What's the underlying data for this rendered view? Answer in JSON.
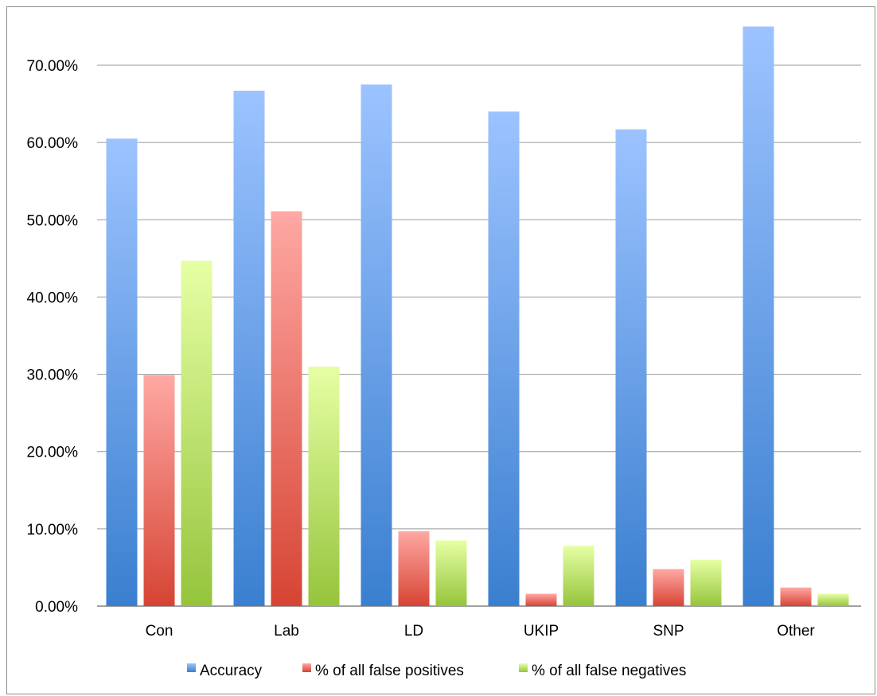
{
  "chart_data": {
    "type": "bar",
    "categories": [
      "Con",
      "Lab",
      "LD",
      "UKIP",
      "SNP",
      "Other"
    ],
    "series": [
      {
        "name": "Accuracy",
        "values": [
          0.605,
          0.667,
          0.675,
          0.64,
          0.617,
          0.75
        ]
      },
      {
        "name": "% of all false positives",
        "values": [
          0.299,
          0.511,
          0.097,
          0.016,
          0.048,
          0.024
        ]
      },
      {
        "name": "% of all false negatives",
        "values": [
          0.447,
          0.31,
          0.085,
          0.078,
          0.06,
          0.016
        ]
      }
    ],
    "yticks": [
      "0.00%",
      "10.00%",
      "20.00%",
      "30.00%",
      "40.00%",
      "50.00%",
      "60.00%",
      "70.00%"
    ],
    "ylim": [
      0,
      0.75
    ],
    "grid": true,
    "legend_position": "bottom",
    "colors": {
      "Accuracy": {
        "light": "#9cc3ff",
        "dark": "#3a7fd0"
      },
      "% of all false positives": {
        "light": "#ffa8a4",
        "dark": "#d64433"
      },
      "% of all false negatives": {
        "light": "#e6ffa4",
        "dark": "#95c43c"
      }
    }
  }
}
